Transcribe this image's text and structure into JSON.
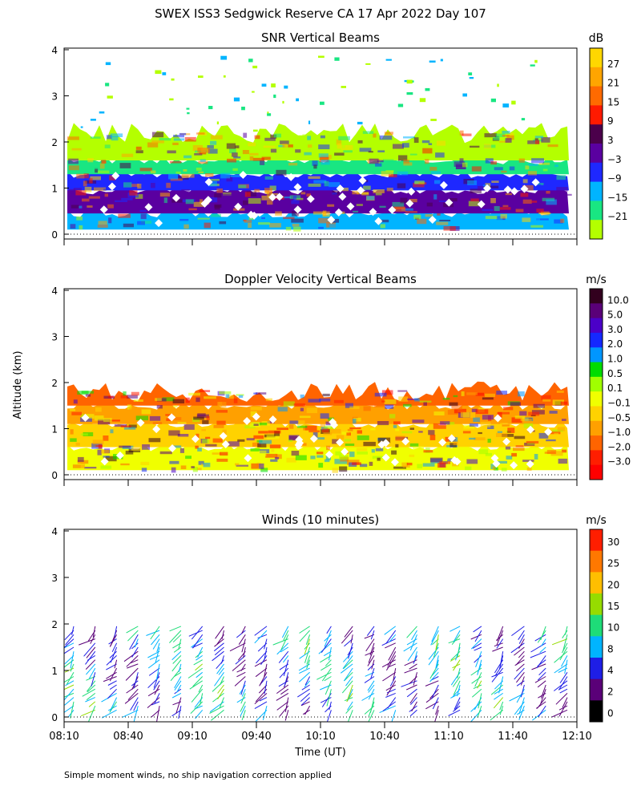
{
  "figure_title": "SWEX ISS3 Sedgwick Reserve CA  17 Apr 2022 Day 107",
  "y_axis_label": "Altitude (km)",
  "x_axis_label": "Time (UT)",
  "footnote": "Simple moment winds, no ship navigation correction applied",
  "chart_data": [
    {
      "type": "heatmap",
      "title": "SNR Vertical Beams",
      "ylim": [
        0,
        4
      ],
      "yticks": [
        "0",
        "1",
        "2",
        "3",
        "4"
      ],
      "xlim": [
        "08:10",
        "12:10"
      ],
      "colorbar": {
        "unit": "dB",
        "labels": [
          "27",
          "21",
          "15",
          "9",
          "3",
          "−3",
          "−9",
          "−15",
          "−21"
        ],
        "colors": [
          "#ffd700",
          "#ffa500",
          "#ff6a00",
          "#ff1a00",
          "#4b004b",
          "#5a00a0",
          "#1e28ff",
          "#00b4ff",
          "#19e682",
          "#b4ff00"
        ]
      },
      "layers": [
        {
          "from_km": 0.1,
          "to_km": 0.45,
          "value": "-9 to -3",
          "color": "#00b4ff"
        },
        {
          "from_km": 0.45,
          "to_km": 0.95,
          "value": "3 to 9",
          "color": "#5a00a0"
        },
        {
          "from_km": 0.95,
          "to_km": 1.3,
          "value": "-3 to 3",
          "color": "#1e28ff"
        },
        {
          "from_km": 1.3,
          "to_km": 1.6,
          "value": "-15 to -9",
          "color": "#19e682"
        },
        {
          "from_km": 1.6,
          "to_km": 2.2,
          "value": "-21 to -15",
          "color": "#b4ff00"
        }
      ]
    },
    {
      "type": "heatmap",
      "title": "Doppler Velocity Vertical Beams",
      "ylim": [
        0,
        4
      ],
      "yticks": [
        "0",
        "1",
        "2",
        "3",
        "4"
      ],
      "xlim": [
        "08:10",
        "12:10"
      ],
      "colorbar": {
        "unit": "m/s",
        "labels": [
          "10.0",
          "5.0",
          "3.0",
          "2.0",
          "1.0",
          "0.5",
          "0.1",
          "−0.1",
          "−0.5",
          "−1.0",
          "−2.0",
          "−3.0"
        ],
        "colors": [
          "#32001e",
          "#5a0078",
          "#4b00c8",
          "#1428ff",
          "#0096ff",
          "#00dc00",
          "#a0ff00",
          "#f0ff00",
          "#ffd200",
          "#ffa000",
          "#ff6400",
          "#ff1e00",
          "#ff0000"
        ]
      },
      "layers": [
        {
          "from_km": 0.1,
          "to_km": 0.6,
          "value": "-0.1 to 0.1",
          "color": "#f0ff00"
        },
        {
          "from_km": 0.6,
          "to_km": 1.1,
          "value": "-0.5 to -0.1",
          "color": "#ffd200"
        },
        {
          "from_km": 1.1,
          "to_km": 1.5,
          "value": "-1.0 to -0.5",
          "color": "#ffa000"
        },
        {
          "from_km": 1.5,
          "to_km": 1.8,
          "value": "-2.0 to -1.0",
          "color": "#ff6400"
        }
      ]
    },
    {
      "type": "scatter",
      "title": "Winds (10 minutes)",
      "ylim": [
        0,
        4
      ],
      "yticks": [
        "0",
        "1",
        "2",
        "3",
        "4"
      ],
      "xlim": [
        "08:10",
        "12:10"
      ],
      "xticks": [
        "08:10",
        "08:40",
        "09:10",
        "09:40",
        "10:10",
        "10:40",
        "11:10",
        "11:40",
        "12:10"
      ],
      "colorbar": {
        "unit": "m/s",
        "labels": [
          "30",
          "25",
          "20",
          "15",
          "10",
          "8",
          "4",
          "2",
          "0"
        ],
        "colors": [
          "#ff1e00",
          "#ff7800",
          "#ffbe00",
          "#96dc00",
          "#1edc78",
          "#00b4ff",
          "#1e1ee6",
          "#5a0078",
          "#000000"
        ]
      },
      "profile_times": [
        "08:15",
        "08:25",
        "08:35",
        "08:45",
        "08:55",
        "09:05",
        "09:15",
        "09:25",
        "09:35",
        "09:45",
        "09:55",
        "10:05",
        "10:15",
        "10:25",
        "10:35",
        "10:45",
        "10:55",
        "11:05",
        "11:15",
        "11:25",
        "11:35",
        "11:45",
        "11:55",
        "12:05"
      ],
      "typical_top_km": 2.0,
      "max_speed_ms": 30
    }
  ]
}
